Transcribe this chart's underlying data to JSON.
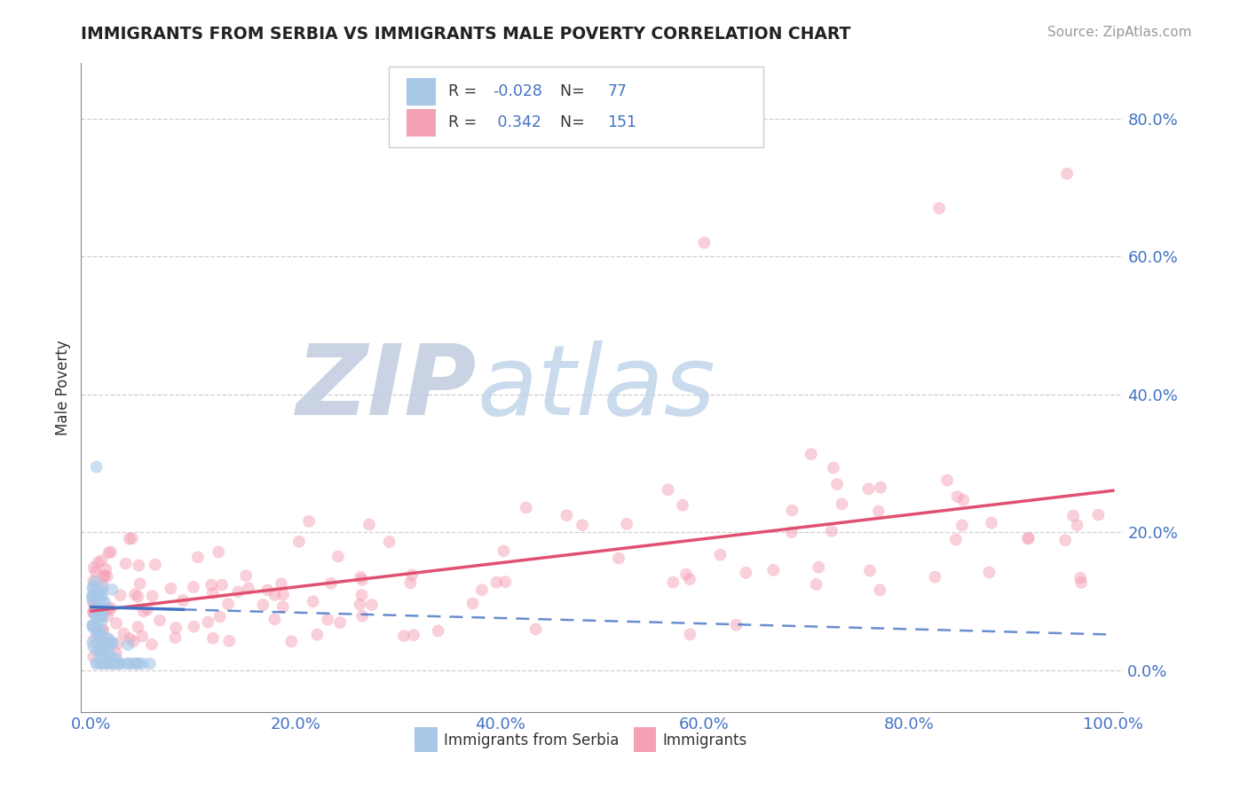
{
  "title": "IMMIGRANTS FROM SERBIA VS IMMIGRANTS MALE POVERTY CORRELATION CHART",
  "source_text": "Source: ZipAtlas.com",
  "ylabel": "Male Poverty",
  "legend_labels": [
    "Immigrants from Serbia",
    "Immigrants"
  ],
  "legend_R": [
    -0.028,
    0.342
  ],
  "legend_N": [
    77,
    151
  ],
  "blue_color": "#a8c8e8",
  "pink_color": "#f4a0b5",
  "blue_line_color": "#4472c4",
  "pink_line_color": "#e05070",
  "blue_scatter_alpha": 0.6,
  "pink_scatter_alpha": 0.5,
  "marker_size": 100,
  "xlim": [
    -0.01,
    1.01
  ],
  "ylim": [
    -0.06,
    0.88
  ],
  "yticks": [
    0.0,
    0.2,
    0.4,
    0.6,
    0.8
  ],
  "ytick_labels": [
    "0.0%",
    "20.0%",
    "40.0%",
    "60.0%",
    "80.0%"
  ],
  "xticks": [
    0.0,
    0.2,
    0.4,
    0.6,
    0.8,
    1.0
  ],
  "xtick_labels": [
    "0.0%",
    "20.0%",
    "40.0%",
    "60.0%",
    "80.0%",
    "100.0%"
  ],
  "background_color": "#ffffff",
  "grid_color": "#bbbbbb",
  "watermark": "ZIPatlas",
  "watermark_color_zip": "#c8d4e8",
  "watermark_color_atlas": "#b8c8d8"
}
